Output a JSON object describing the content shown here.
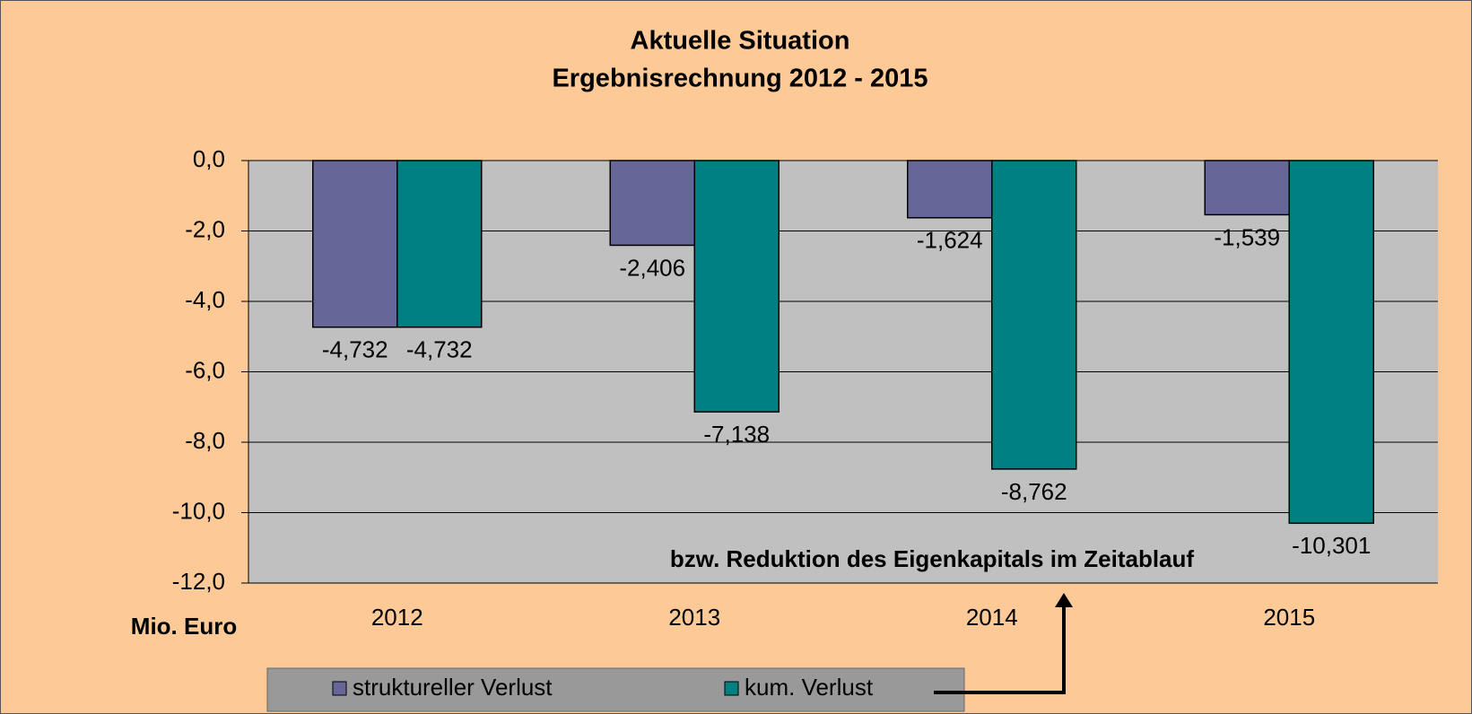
{
  "chart_data": {
    "type": "bar",
    "title": [
      "Aktuelle Situation",
      "Ergebnisrechnung 2012 - 2015"
    ],
    "y_axis_label": "Mio. Euro",
    "annotation": "bzw. Reduktion des Eigenkapitals im Zeitablauf",
    "categories": [
      "2012",
      "2013",
      "2014",
      "2015"
    ],
    "series": [
      {
        "name": "struktureller Verlust",
        "color": "#666699",
        "values": [
          -4.732,
          -2.406,
          -1.624,
          -1.539
        ],
        "value_labels": [
          "-4,732",
          "-2,406",
          "-1,624",
          "-1,539"
        ]
      },
      {
        "name": "kum. Verlust",
        "color": "#008080",
        "values": [
          -4.732,
          -7.138,
          -8.762,
          -10.301
        ],
        "value_labels": [
          "-4,732",
          "-7,138",
          "-8,762",
          "-10,301"
        ]
      }
    ],
    "ylim": [
      -12,
      0
    ],
    "yticks": [
      {
        "value": 0,
        "label": "0,0"
      },
      {
        "value": -2,
        "label": "-2,0"
      },
      {
        "value": -4,
        "label": "-4,0"
      },
      {
        "value": -6,
        "label": "-6,0"
      },
      {
        "value": -8,
        "label": "-8,0"
      },
      {
        "value": -10,
        "label": "-10,0"
      },
      {
        "value": -12,
        "label": "-12,0"
      }
    ],
    "grid": true,
    "legend": "bottom"
  }
}
